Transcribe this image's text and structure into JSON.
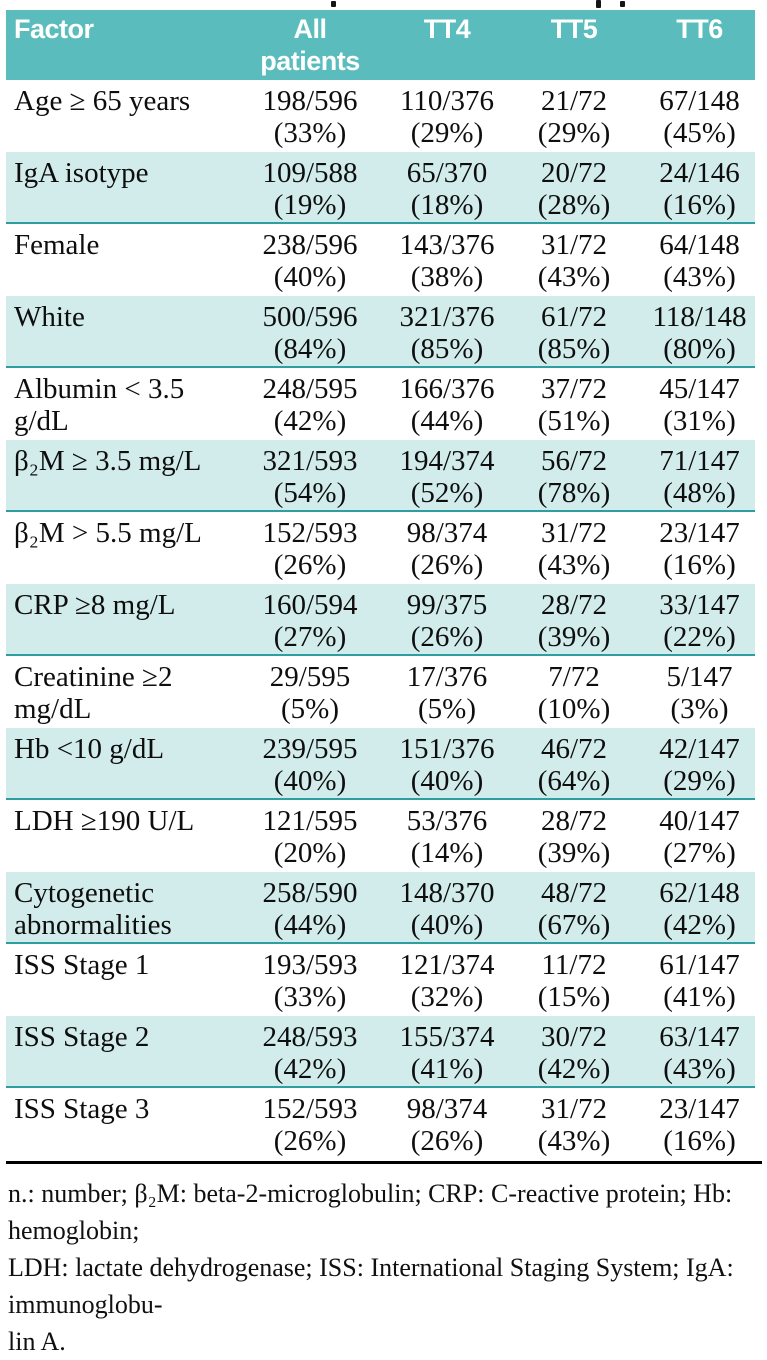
{
  "colors": {
    "header_bg": "#5bbcbd",
    "shaded_row_bg": "#d2ecec",
    "row_separator": "#2d9fa0",
    "header_text": "#ffffff",
    "body_text": "#0e0e0e"
  },
  "table": {
    "header": {
      "factor": "Factor",
      "all_line1": "All",
      "all_line2": "patients",
      "tt4": "TT4",
      "tt5": "TT5",
      "tt6": "TT6"
    },
    "rows": [
      {
        "label1": "Age ≥ 65 years",
        "label2": "",
        "values": [
          "198/596",
          "110/376",
          "21/72",
          "67/148"
        ],
        "percents": [
          "(33%)",
          "(29%)",
          "(29%)",
          "(45%)"
        ]
      },
      {
        "label1": "IgA isotype",
        "label2": "",
        "values": [
          "109/588",
          "65/370",
          "20/72",
          "24/146"
        ],
        "percents": [
          "(19%)",
          "(18%)",
          "(28%)",
          "(16%)"
        ]
      },
      {
        "label1": "Female",
        "label2": "",
        "values": [
          "238/596",
          "143/376",
          "31/72",
          "64/148"
        ],
        "percents": [
          "(40%)",
          "(38%)",
          "(43%)",
          "(43%)"
        ]
      },
      {
        "label1": "White",
        "label2": "",
        "values": [
          "500/596",
          "321/376",
          "61/72",
          "118/148"
        ],
        "percents": [
          "(84%)",
          "(85%)",
          "(85%)",
          "(80%)"
        ]
      },
      {
        "label1": "Albumin < 3.5 g/dL",
        "label2": "",
        "values": [
          "248/595",
          "166/376",
          "37/72",
          "45/147"
        ],
        "percents": [
          "(42%)",
          "(44%)",
          "(51%)",
          "(31%)"
        ]
      },
      {
        "label1": "β₂M ≥ 3.5 mg/L",
        "label2": "",
        "values": [
          "321/593",
          "194/374",
          "56/72",
          "71/147"
        ],
        "percents": [
          "(54%)",
          "(52%)",
          "(78%)",
          "(48%)"
        ]
      },
      {
        "label1": "β₂M > 5.5 mg/L",
        "label2": "",
        "values": [
          "152/593",
          "98/374",
          "31/72",
          "23/147"
        ],
        "percents": [
          "(26%)",
          "(26%)",
          "(43%)",
          "(16%)"
        ]
      },
      {
        "label1": "CRP ≥8 mg/L",
        "label2": "",
        "values": [
          "160/594",
          "99/375",
          "28/72",
          "33/147"
        ],
        "percents": [
          "(27%)",
          "(26%)",
          "(39%)",
          "(22%)"
        ]
      },
      {
        "label1": "Creatinine ≥2 mg/dL",
        "label2": "",
        "values": [
          "29/595",
          "17/376",
          "7/72",
          "5/147"
        ],
        "percents": [
          "(5%)",
          "(5%)",
          "(10%)",
          "(3%)"
        ]
      },
      {
        "label1": "Hb <10 g/dL",
        "label2": "",
        "values": [
          "239/595",
          "151/376",
          "46/72",
          "42/147"
        ],
        "percents": [
          "(40%)",
          "(40%)",
          "(64%)",
          "(29%)"
        ]
      },
      {
        "label1": "LDH ≥190 U/L",
        "label2": "",
        "values": [
          "121/595",
          "53/376",
          "28/72",
          "40/147"
        ],
        "percents": [
          "(20%)",
          "(14%)",
          "(39%)",
          "(27%)"
        ]
      },
      {
        "label1": "Cytogenetic",
        "label2": "abnormalities",
        "values": [
          "258/590",
          "148/370",
          "48/72",
          "62/148"
        ],
        "percents": [
          "(44%)",
          "(40%)",
          "(67%)",
          "(42%)"
        ]
      },
      {
        "label1": "ISS Stage 1",
        "label2": "",
        "values": [
          "193/593",
          "121/374",
          "11/72",
          "61/147"
        ],
        "percents": [
          "(33%)",
          "(32%)",
          "(15%)",
          "(41%)"
        ]
      },
      {
        "label1": "ISS Stage 2",
        "label2": "",
        "values": [
          "248/593",
          "155/374",
          "30/72",
          "63/147"
        ],
        "percents": [
          "(42%)",
          "(41%)",
          "(42%)",
          "(43%)"
        ]
      },
      {
        "label1": "ISS Stage 3",
        "label2": "",
        "values": [
          "152/593",
          "98/374",
          "31/72",
          "23/147"
        ],
        "percents": [
          "(26%)",
          "(26%)",
          "(43%)",
          "(16%)"
        ]
      }
    ]
  },
  "footnote": {
    "line1": "n.: number;  β₂M: beta-2-microglobulin; CRP: C-reactive protein; Hb: hemoglobin;",
    "line2": "LDH: lactate dehydrogenase; ISS: International Staging System; IgA: immunoglobu-",
    "line3": "lin A."
  }
}
